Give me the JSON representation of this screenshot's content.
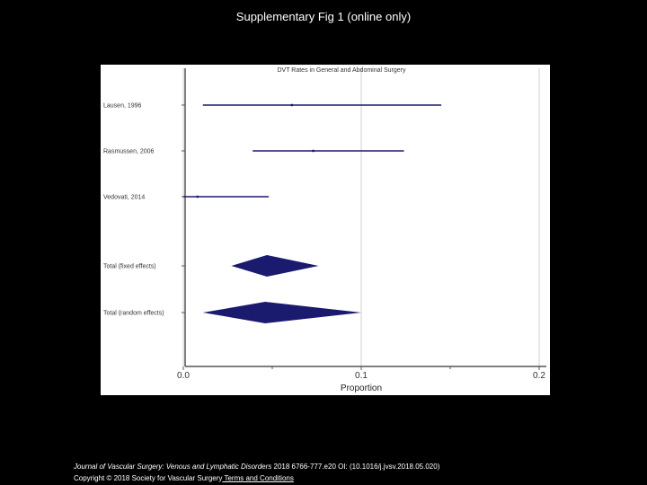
{
  "slide": {
    "title": "Supplementary Fig 1 (online only)"
  },
  "citation": {
    "journal": "Journal of Vascular Surgery: Venous and Lymphatic Disorders",
    "details": " 2018 6766-777.e20 OI: (10.1016/j.jvsv.2018.05.020)",
    "copyright": "Copyright © 2018 Society for Vascular Surgery",
    "terms_link": " Terms and Conditions"
  },
  "chart_data": {
    "type": "forest",
    "title": "DVT Rates in General and Abdominal Surgery",
    "xlabel": "Proportion",
    "xlim": [
      0,
      0.2
    ],
    "xticks": [
      0,
      0.1,
      0.2
    ],
    "xtick_labels": [
      "0.0",
      "0.1",
      "0.2"
    ],
    "grid": "vertical at ticks",
    "colors": {
      "marks": "#1a1a6e",
      "grid": "#cfcfcf",
      "axis": "#555555"
    },
    "studies": [
      {
        "label": "Lausen, 1996",
        "estimate": 0.061,
        "lower": 0.011,
        "upper": 0.145
      },
      {
        "label": "Rasmussen, 2006",
        "estimate": 0.073,
        "lower": 0.039,
        "upper": 0.124
      },
      {
        "label": "Vedovati, 2014",
        "estimate": 0.008,
        "lower": 0.0,
        "upper": 0.048
      }
    ],
    "pooled": [
      {
        "label": "Total (fixed effects)",
        "estimate": 0.047,
        "lower": 0.027,
        "upper": 0.076
      },
      {
        "label": "Total (random effects)",
        "estimate": 0.046,
        "lower": 0.011,
        "upper": 0.1
      }
    ]
  }
}
